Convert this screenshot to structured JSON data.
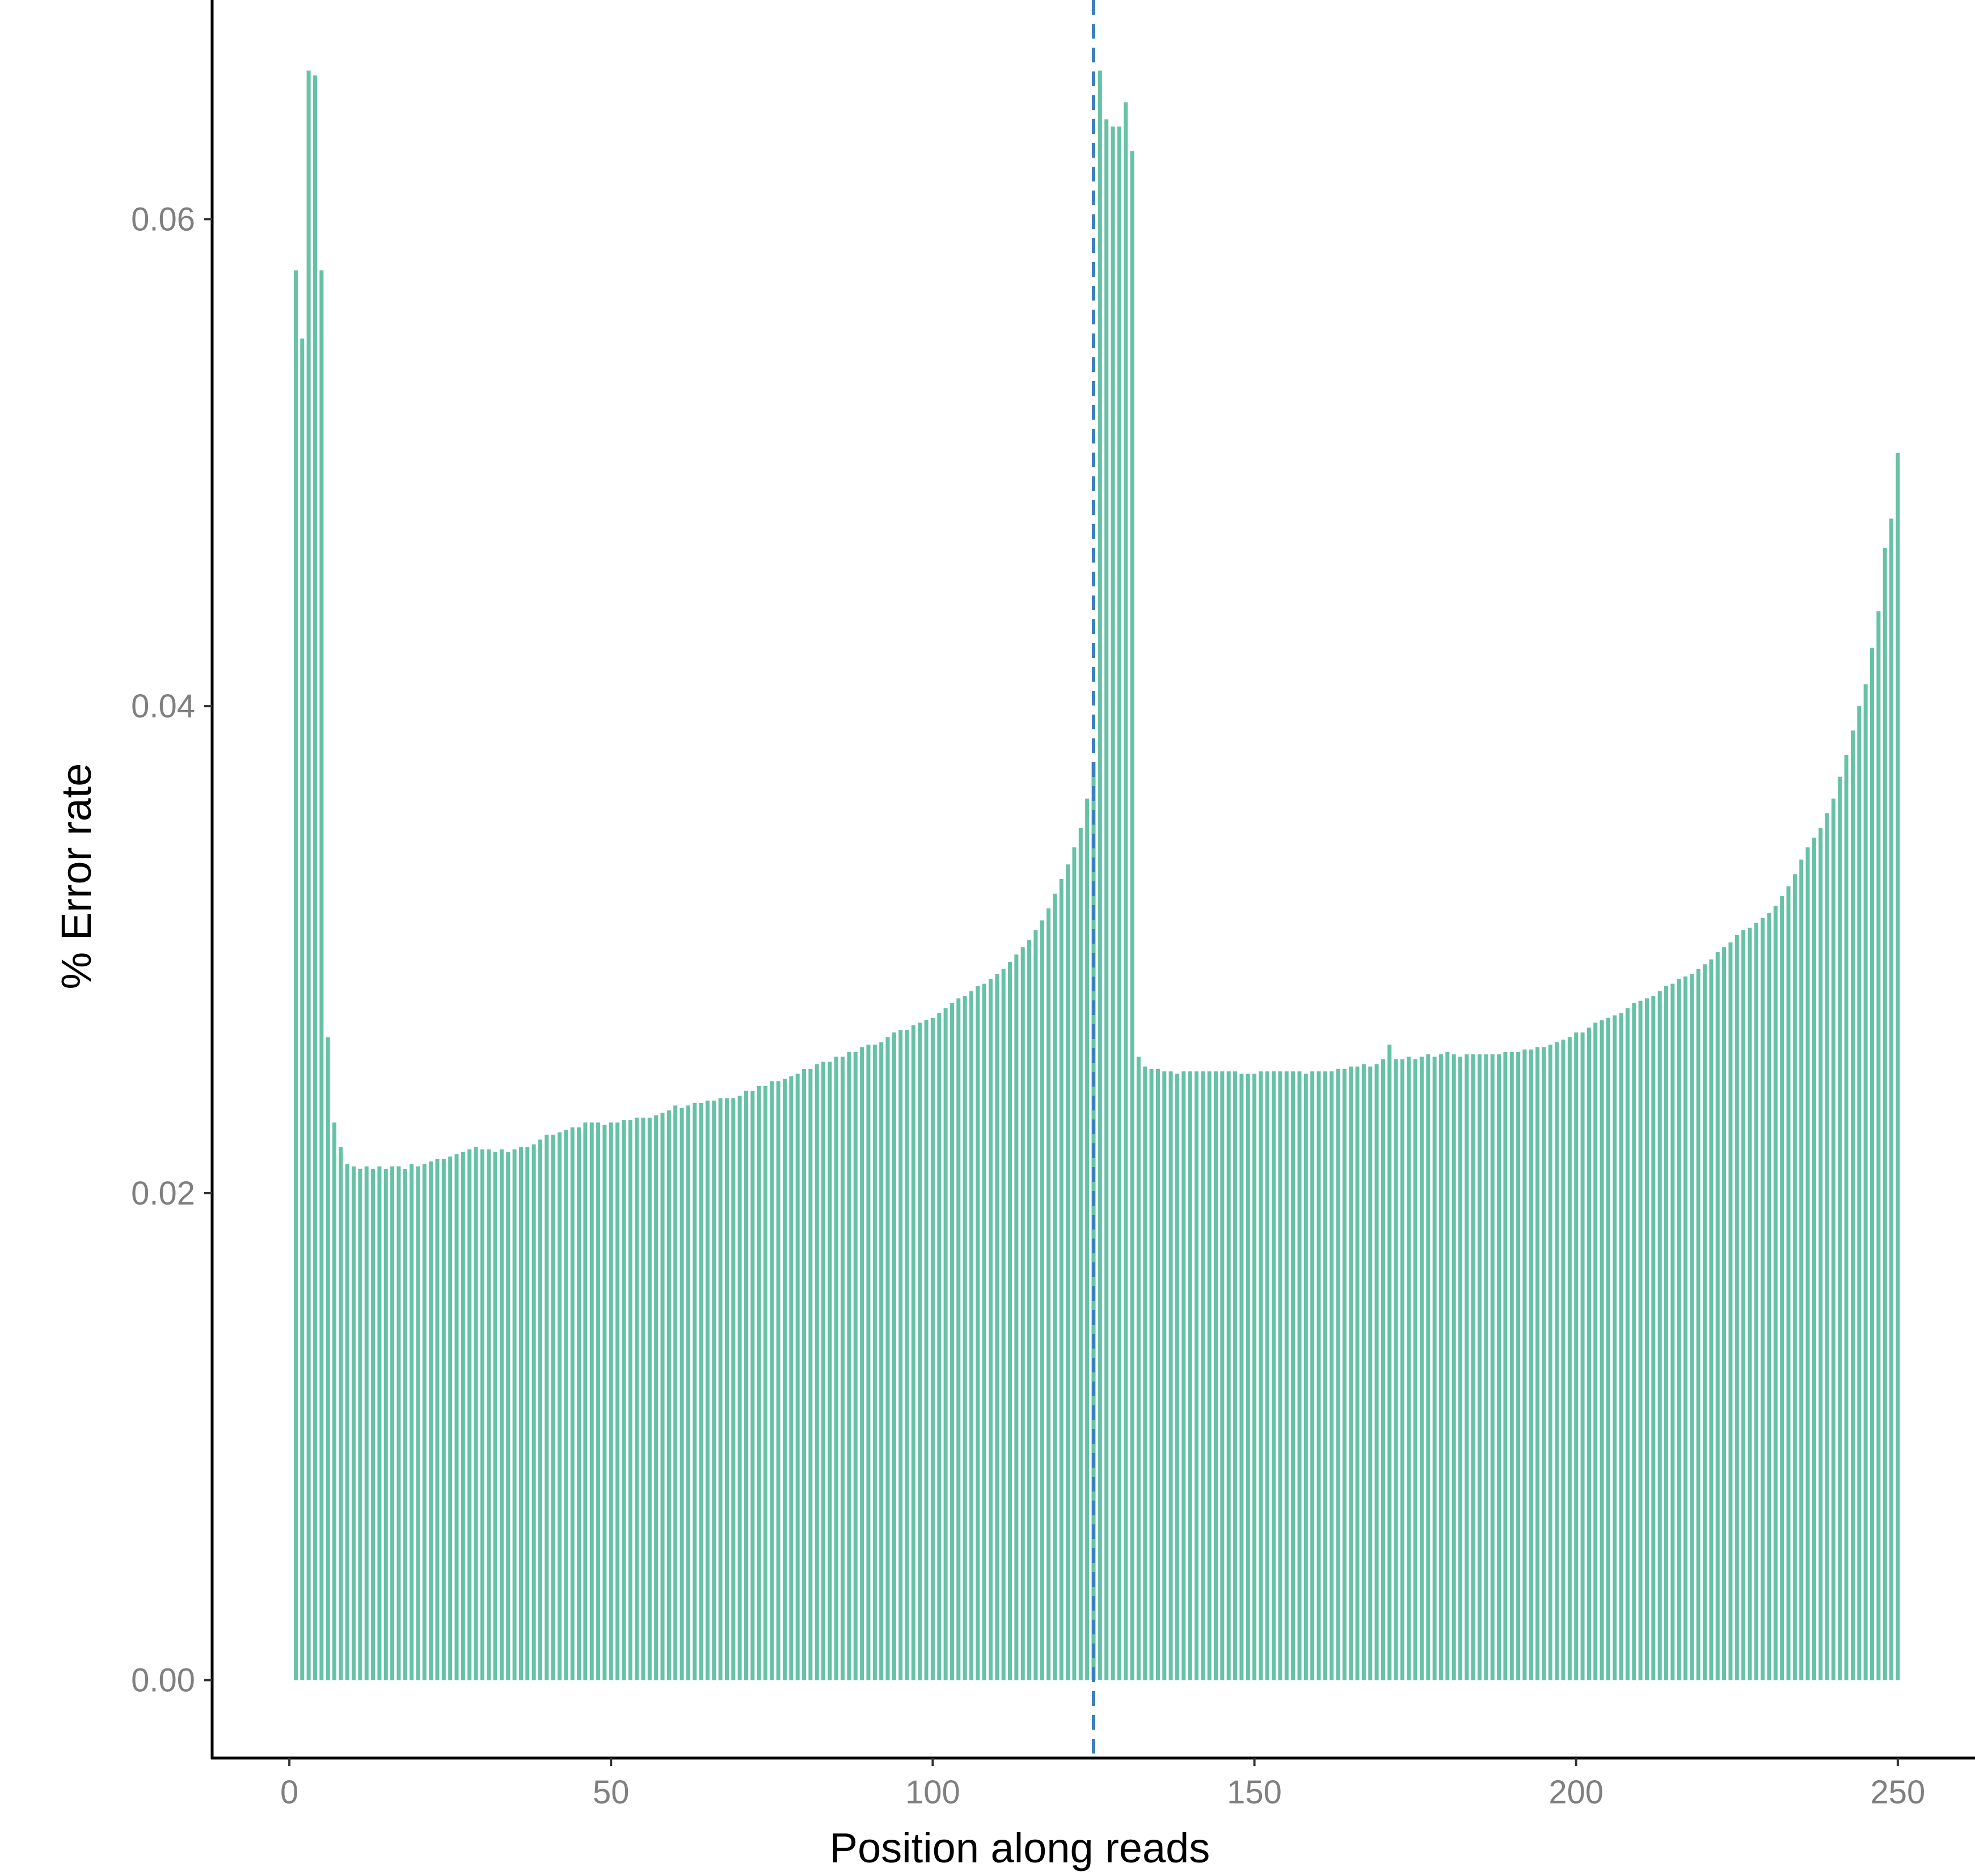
{
  "chart_data": {
    "type": "bar",
    "title": "",
    "xlabel": "Position along reads",
    "ylabel": "% Error rate",
    "xlim": [
      -12,
      262
    ],
    "ylim": [
      -0.0032,
      0.069
    ],
    "x_ticks": [
      0,
      50,
      100,
      150,
      200,
      250
    ],
    "x_tick_labels": [
      "0",
      "50",
      "100",
      "150",
      "200",
      "250"
    ],
    "y_ticks": [
      0.0,
      0.02,
      0.04,
      0.06
    ],
    "y_tick_labels": [
      "0.00",
      "0.02",
      "0.04",
      "0.06"
    ],
    "grid": false,
    "legend": "none",
    "reference_line": {
      "x": 125,
      "style": "dashed",
      "color": "#3a7fbf"
    },
    "colors": {
      "bar": "#66c2a5",
      "axis": "#000000",
      "tick_text": "#7f7f7f"
    },
    "positions_start": 1,
    "values": [
      0.0579,
      0.0551,
      0.0661,
      0.0659,
      0.0579,
      0.0264,
      0.0229,
      0.0219,
      0.0212,
      0.0211,
      0.021,
      0.0211,
      0.021,
      0.0211,
      0.021,
      0.0211,
      0.0211,
      0.021,
      0.0212,
      0.0211,
      0.0212,
      0.0213,
      0.0214,
      0.0214,
      0.0215,
      0.0216,
      0.0217,
      0.0218,
      0.0219,
      0.0218,
      0.0218,
      0.0217,
      0.0218,
      0.0217,
      0.0218,
      0.0219,
      0.0219,
      0.022,
      0.0222,
      0.0224,
      0.0224,
      0.0225,
      0.0226,
      0.0227,
      0.0227,
      0.0229,
      0.0229,
      0.0229,
      0.0228,
      0.0229,
      0.0229,
      0.023,
      0.023,
      0.0231,
      0.0231,
      0.0231,
      0.0232,
      0.0233,
      0.0234,
      0.0236,
      0.0235,
      0.0236,
      0.0237,
      0.0237,
      0.0238,
      0.0238,
      0.0239,
      0.0239,
      0.0239,
      0.024,
      0.0242,
      0.0242,
      0.0244,
      0.0244,
      0.0246,
      0.0246,
      0.0247,
      0.0248,
      0.0249,
      0.0251,
      0.0251,
      0.0253,
      0.0254,
      0.0254,
      0.0256,
      0.0256,
      0.0258,
      0.0258,
      0.026,
      0.0261,
      0.0261,
      0.0262,
      0.0264,
      0.0266,
      0.0267,
      0.0267,
      0.0269,
      0.027,
      0.0271,
      0.0272,
      0.0274,
      0.0276,
      0.0278,
      0.028,
      0.0281,
      0.0283,
      0.0285,
      0.0286,
      0.0288,
      0.029,
      0.0292,
      0.0295,
      0.0298,
      0.0301,
      0.0304,
      0.0308,
      0.0312,
      0.0317,
      0.0323,
      0.0329,
      0.0335,
      0.0342,
      0.035,
      0.0362,
      0.0377,
      0.0661,
      0.0641,
      0.0638,
      0.0638,
      0.0648,
      0.0628,
      0.0256,
      0.0252,
      0.0251,
      0.0251,
      0.025,
      0.025,
      0.0249,
      0.025,
      0.025,
      0.025,
      0.025,
      0.025,
      0.025,
      0.025,
      0.025,
      0.025,
      0.0249,
      0.0249,
      0.0249,
      0.025,
      0.025,
      0.025,
      0.025,
      0.025,
      0.025,
      0.025,
      0.0249,
      0.025,
      0.025,
      0.025,
      0.025,
      0.0251,
      0.0251,
      0.0252,
      0.0252,
      0.0253,
      0.0252,
      0.0253,
      0.0255,
      0.0261,
      0.0255,
      0.0255,
      0.0256,
      0.0255,
      0.0256,
      0.0257,
      0.0256,
      0.0257,
      0.0258,
      0.0257,
      0.0256,
      0.0257,
      0.0257,
      0.0257,
      0.0257,
      0.0257,
      0.0257,
      0.0258,
      0.0258,
      0.0258,
      0.0259,
      0.0259,
      0.026,
      0.026,
      0.0261,
      0.0262,
      0.0263,
      0.0264,
      0.0266,
      0.0266,
      0.0268,
      0.027,
      0.0271,
      0.0272,
      0.0273,
      0.0274,
      0.0276,
      0.0278,
      0.0279,
      0.028,
      0.0281,
      0.0283,
      0.0285,
      0.0286,
      0.0288,
      0.0289,
      0.029,
      0.0292,
      0.0294,
      0.0296,
      0.0299,
      0.0301,
      0.0303,
      0.0306,
      0.0308,
      0.0309,
      0.0311,
      0.0313,
      0.0315,
      0.0318,
      0.0322,
      0.0326,
      0.0331,
      0.0337,
      0.0342,
      0.0346,
      0.035,
      0.0356,
      0.0362,
      0.0371,
      0.038,
      0.039,
      0.04,
      0.0409,
      0.0424,
      0.0439,
      0.0465,
      0.0477,
      0.0504
    ]
  }
}
